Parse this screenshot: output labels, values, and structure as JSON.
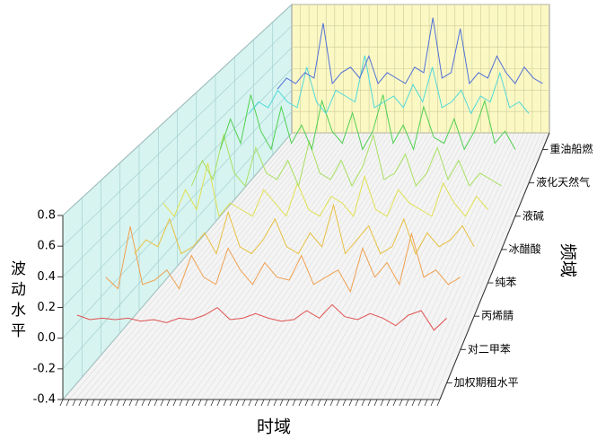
{
  "chart_data": {
    "type": "line3d",
    "y_label": "波动水平",
    "x_label": "时域",
    "z_label": "频域",
    "ylim": [
      -0.4,
      0.8
    ],
    "yticks": [
      -0.4,
      -0.2,
      {
        "value": 0,
        "label": "0.0"
      },
      0.2,
      0.4,
      0.6,
      0.8
    ],
    "grid": true,
    "series": [
      {
        "name": "加权期租水平",
        "color": "#e05050",
        "values": [
          0.05,
          0.02,
          0.03,
          0.02,
          0.03,
          0.01,
          0.02,
          0.0,
          0.03,
          0.02,
          0.05,
          0.1,
          0.02,
          0.03,
          0.06,
          0.03,
          0.01,
          0.02,
          0.08,
          0.03,
          0.12,
          0.04,
          0.02,
          0.06,
          0.03,
          -0.02,
          0.05,
          0.08,
          -0.05,
          0.03
        ]
      },
      {
        "name": "对二甲苯",
        "color": "#f0a050",
        "values": [
          0.1,
          0.02,
          0.45,
          0.05,
          0.08,
          0.15,
          0.02,
          0.25,
          0.1,
          0.05,
          0.3,
          0.15,
          0.05,
          0.2,
          0.1,
          0.08,
          0.25,
          0.05,
          0.1,
          0.15,
          0.0,
          0.3,
          0.1,
          0.2,
          0.05,
          0.4,
          0.1,
          0.15,
          0.05,
          0.1
        ]
      },
      {
        "name": "丙烯腈",
        "color": "#e8c040",
        "values": [
          0.05,
          0.15,
          0.1,
          0.3,
          0.05,
          0.1,
          0.2,
          0.05,
          0.35,
          0.1,
          0.05,
          0.15,
          0.3,
          0.1,
          0.05,
          0.2,
          0.1,
          0.4,
          0.05,
          0.15,
          0.25,
          0.05,
          0.1,
          0.3,
          0.05,
          0.2,
          0.1,
          0.15,
          0.25,
          0.1
        ]
      },
      {
        "name": "纯苯",
        "color": "#e0e050",
        "values": [
          0.2,
          0.1,
          0.3,
          0.15,
          0.5,
          0.1,
          0.2,
          0.15,
          0.1,
          0.3,
          0.2,
          0.1,
          0.35,
          0.15,
          0.1,
          0.25,
          0.2,
          0.1,
          0.4,
          0.15,
          0.1,
          0.3,
          0.2,
          0.15,
          0.1,
          0.35,
          0.2,
          0.1,
          0.25,
          0.15
        ]
      },
      {
        "name": "冰醋酸",
        "color": "#a8e060",
        "values": [
          0.1,
          0.3,
          0.15,
          0.5,
          0.2,
          0.1,
          0.4,
          0.2,
          0.15,
          0.3,
          0.1,
          0.45,
          0.2,
          0.15,
          0.3,
          0.1,
          0.25,
          0.5,
          0.15,
          0.2,
          0.35,
          0.1,
          0.2,
          0.4,
          0.15,
          0.3,
          0.1,
          0.2,
          0.15,
          0.1
        ]
      },
      {
        "name": "液碱",
        "color": "#50d050",
        "values": [
          0.15,
          0.4,
          0.2,
          0.6,
          0.3,
          0.15,
          0.5,
          0.2,
          0.35,
          0.15,
          0.55,
          0.3,
          0.2,
          0.45,
          0.15,
          0.3,
          0.6,
          0.2,
          0.35,
          0.15,
          0.5,
          0.25,
          0.2,
          0.4,
          0.15,
          0.3,
          0.55,
          0.2,
          0.3,
          0.15
        ]
      },
      {
        "name": "液化天然气",
        "color": "#50d8d8",
        "values": [
          0.2,
          0.3,
          0.25,
          0.4,
          0.3,
          0.25,
          0.6,
          0.3,
          0.2,
          0.4,
          0.35,
          0.3,
          0.7,
          0.25,
          0.3,
          0.35,
          0.25,
          0.45,
          0.3,
          0.6,
          0.25,
          0.3,
          0.4,
          0.2,
          0.35,
          0.3,
          0.55,
          0.25,
          0.3,
          0.2
        ]
      },
      {
        "name": "重油船燃",
        "color": "#5070d8",
        "values": [
          0.15,
          0.25,
          0.2,
          0.3,
          0.25,
          0.75,
          0.2,
          0.3,
          0.35,
          0.25,
          0.45,
          0.2,
          0.3,
          0.25,
          0.2,
          0.35,
          0.3,
          0.8,
          0.25,
          0.3,
          0.7,
          0.2,
          0.3,
          0.25,
          0.45,
          0.3,
          0.2,
          0.35,
          0.25,
          0.2
        ]
      }
    ]
  }
}
